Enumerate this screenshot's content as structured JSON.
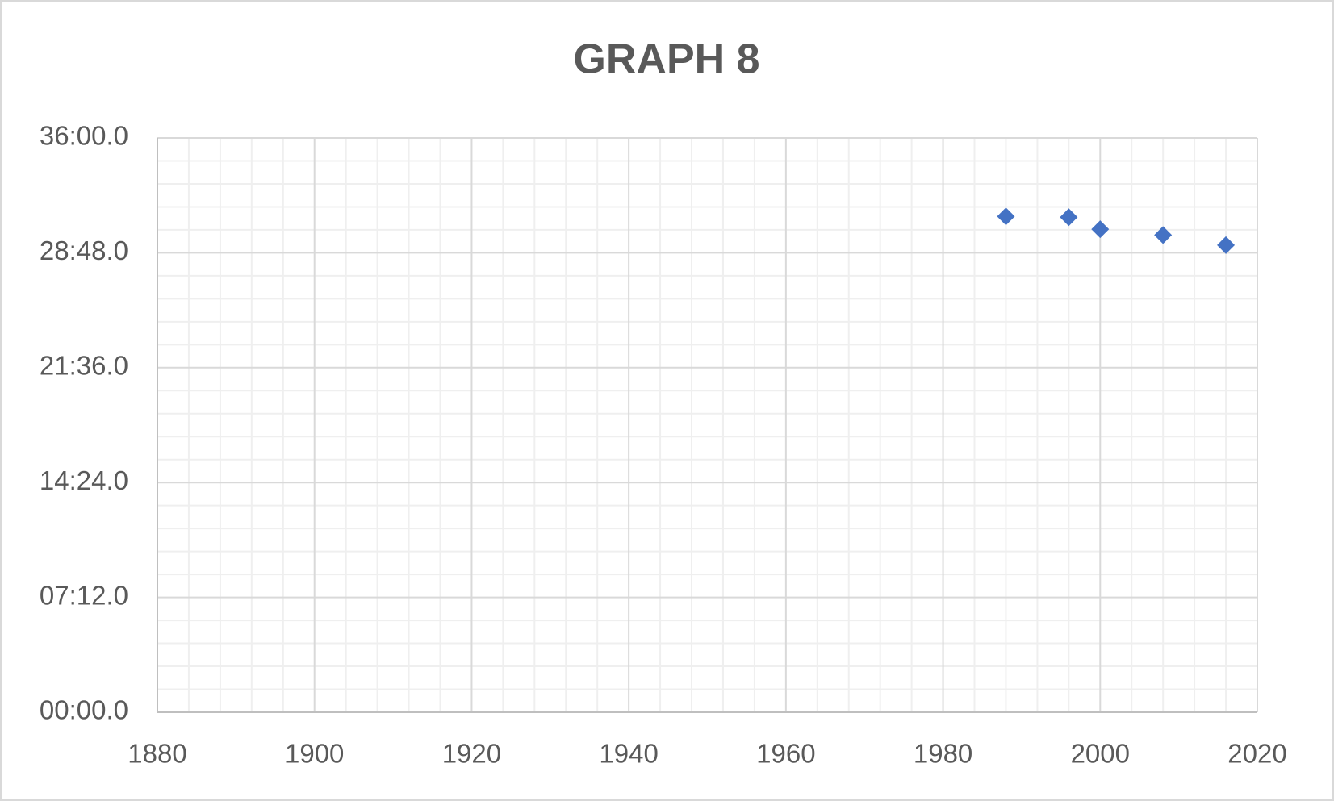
{
  "chart_data": {
    "type": "scatter",
    "title": "GRAPH 8",
    "x": [
      1988,
      1996,
      2000,
      2008,
      2016
    ],
    "values": [
      1865,
      1862,
      1817,
      1795,
      1757
    ],
    "color": "#4472c4",
    "marker": "diamond",
    "xlim": [
      1880,
      2020
    ],
    "xticks": [
      1880,
      1900,
      1920,
      1940,
      1960,
      1980,
      2000,
      2020
    ],
    "ylim": [
      0,
      2160
    ],
    "yticks": [
      {
        "value": 0,
        "label": "00:00.0"
      },
      {
        "value": 432,
        "label": "07:12.0"
      },
      {
        "value": 864,
        "label": "14:24.0"
      },
      {
        "value": 1296,
        "label": "21:36.0"
      },
      {
        "value": 1728,
        "label": "28:48.0"
      },
      {
        "value": 2160,
        "label": "36:00.0"
      }
    ],
    "grid": true
  }
}
